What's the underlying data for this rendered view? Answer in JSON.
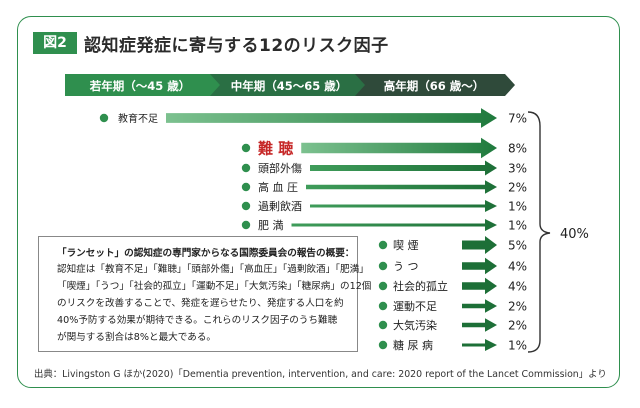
{
  "badge": "図2",
  "title": "認知症発症に寄与する12のリスク因子",
  "phases": [
    "若年期（〜45 歳）",
    "中年期（45〜65 歳）",
    "高年期（66 歳〜）"
  ],
  "chart_data": {
    "type": "diagram",
    "title": "認知症発症に寄与する12のリスク因子",
    "unit": "%",
    "total_label": "40%",
    "factors": [
      {
        "label": "教育不足",
        "value": 7,
        "value_label": "7%",
        "phase": "若年期"
      },
      {
        "label": "難 聴",
        "value": 8,
        "value_label": "8%",
        "phase": "中年期"
      },
      {
        "label": "頭部外傷",
        "value": 3,
        "value_label": "3%",
        "phase": "中年期"
      },
      {
        "label": "高 血 圧",
        "value": 2,
        "value_label": "2%",
        "phase": "中年期"
      },
      {
        "label": "過剰飲酒",
        "value": 1,
        "value_label": "1%",
        "phase": "中年期"
      },
      {
        "label": "肥 満",
        "value": 1,
        "value_label": "1%",
        "phase": "中年期"
      },
      {
        "label": "喫 煙",
        "value": 5,
        "value_label": "5%",
        "phase": "高年期"
      },
      {
        "label": "う つ",
        "value": 4,
        "value_label": "4%",
        "phase": "高年期"
      },
      {
        "label": "社会的孤立",
        "value": 4,
        "value_label": "4%",
        "phase": "高年期"
      },
      {
        "label": "運動不足",
        "value": 2,
        "value_label": "2%",
        "phase": "高年期"
      },
      {
        "label": "大気汚染",
        "value": 2,
        "value_label": "2%",
        "phase": "高年期"
      },
      {
        "label": "糖 尿 病",
        "value": 1,
        "value_label": "1%",
        "phase": "高年期"
      }
    ]
  },
  "note": {
    "heading": "「ランセット」の認知症の専門家からなる国際委員会の報告の概要：",
    "lines": [
      "認知症は「教育不足」「難聴」「頭部外傷」「高血圧」「過剰飲酒」「肥満」",
      "「喫煙」「うつ」「社会的孤立」「運動不足」「大気汚染」「糖尿病」の12個",
      "のリスクを改善することで、発症を遅らせたり、発症する人口を約",
      "40%予防する効果が期待できる。これらのリスク因子のうち難聴",
      "が関与する割合は8%と最大である。"
    ]
  },
  "source": "出典：Livingston G ほか(2020)「Dementia prevention, intervention, and care: 2020 report of the Lancet Commission」より",
  "colors": {
    "green": "#2f8f4e",
    "dark": "#2f4a3a",
    "accent_red": "#c62828"
  }
}
